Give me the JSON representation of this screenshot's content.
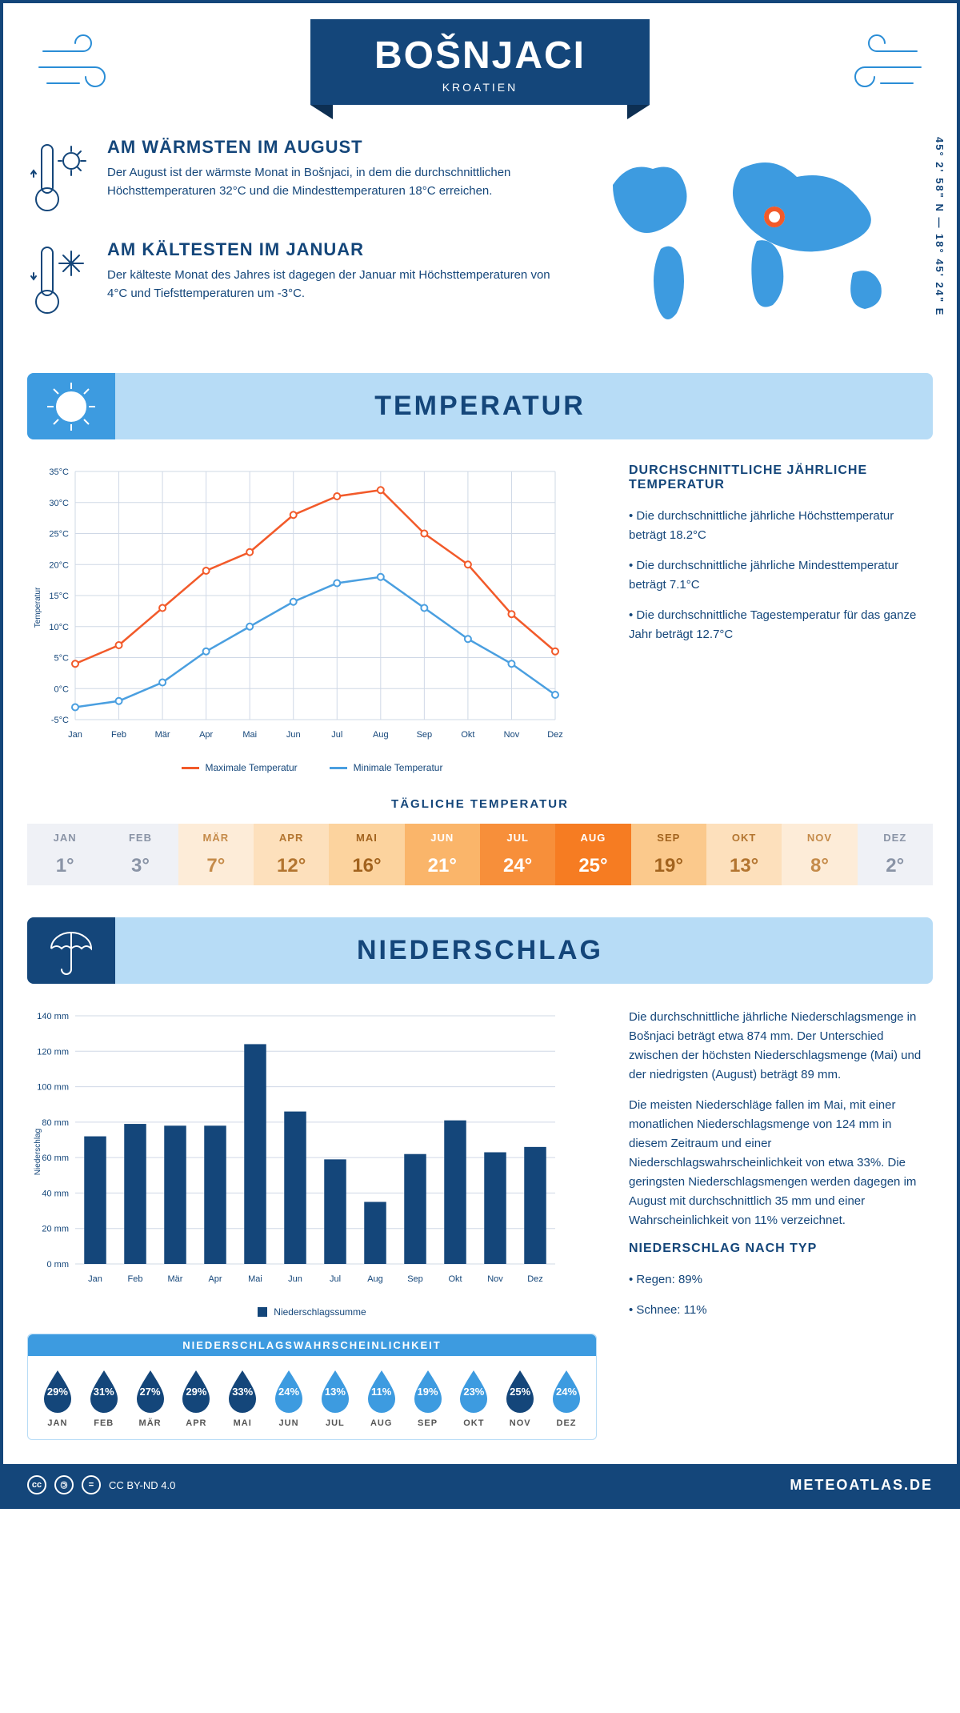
{
  "place": "BOŠNJACI",
  "country": "KROATIEN",
  "coords": "45° 2' 58\" N — 18° 45' 24\" E",
  "warmest": {
    "title": "AM WÄRMSTEN IM AUGUST",
    "text": "Der August ist der wärmste Monat in Bošnjaci, in dem die durchschnittlichen Höchsttemperaturen 32°C und die Mindesttemperaturen 18°C erreichen."
  },
  "coldest": {
    "title": "AM KÄLTESTEN IM JANUAR",
    "text": "Der kälteste Monat des Jahres ist dagegen der Januar mit Höchsttemperaturen von 4°C und Tiefsttemperaturen um -3°C."
  },
  "sections": {
    "temperature": "TEMPERATUR",
    "precipitation": "NIEDERSCHLAG"
  },
  "temp_info": {
    "heading": "DURCHSCHNITTLICHE JÄHRLICHE TEMPERATUR",
    "lines": [
      "• Die durchschnittliche jährliche Höchsttemperatur beträgt 18.2°C",
      "• Die durchschnittliche jährliche Mindesttemperatur beträgt 7.1°C",
      "• Die durchschnittliche Tagestemperatur für das ganze Jahr beträgt 12.7°C"
    ]
  },
  "months": [
    "Jan",
    "Feb",
    "Mär",
    "Apr",
    "Mai",
    "Jun",
    "Jul",
    "Aug",
    "Sep",
    "Okt",
    "Nov",
    "Dez"
  ],
  "months_upper": [
    "JAN",
    "FEB",
    "MÄR",
    "APR",
    "MAI",
    "JUN",
    "JUL",
    "AUG",
    "SEP",
    "OKT",
    "NOV",
    "DEZ"
  ],
  "temp_chart": {
    "type": "line",
    "ylabel": "Temperatur",
    "ylim": [
      -5,
      35
    ],
    "ytick_step": 5,
    "max": {
      "label": "Maximale Temperatur",
      "color": "#f25a2a",
      "values": [
        4,
        7,
        13,
        19,
        22,
        28,
        31,
        32,
        25,
        20,
        12,
        6
      ]
    },
    "min": {
      "label": "Minimale Temperatur",
      "color": "#4a9fe0",
      "values": [
        -3,
        -2,
        1,
        6,
        10,
        14,
        17,
        18,
        13,
        8,
        4,
        -1
      ]
    },
    "grid_color": "#cfd8e6",
    "background": "#ffffff",
    "label_fontsize": 11
  },
  "daily_title": "TÄGLICHE TEMPERATUR",
  "daily_temps": [
    1,
    3,
    7,
    12,
    16,
    21,
    24,
    25,
    19,
    13,
    8,
    2
  ],
  "daily_colors": [
    "#eff1f6",
    "#eff1f6",
    "#fdecd8",
    "#fde0bc",
    "#fcd39e",
    "#fab56a",
    "#f78f3a",
    "#f67c22",
    "#fbc98c",
    "#fde0bc",
    "#fdecd8",
    "#eff1f6"
  ],
  "daily_text_colors": [
    "#8a94a6",
    "#8a94a6",
    "#c58b4a",
    "#b37530",
    "#a2631e",
    "#ffffff",
    "#ffffff",
    "#ffffff",
    "#a2631e",
    "#b37530",
    "#c58b4a",
    "#8a94a6"
  ],
  "precip_chart": {
    "type": "bar",
    "ylabel": "Niederschlag",
    "ylim": [
      0,
      140
    ],
    "ytick_step": 20,
    "values": [
      72,
      79,
      78,
      78,
      124,
      86,
      59,
      35,
      62,
      81,
      63,
      66
    ],
    "bar_color": "#14467a",
    "grid_color": "#cfd8e6",
    "legend": "Niederschlagssumme"
  },
  "precip_text": {
    "p1": "Die durchschnittliche jährliche Niederschlagsmenge in Bošnjaci beträgt etwa 874 mm. Der Unterschied zwischen der höchsten Niederschlagsmenge (Mai) und der niedrigsten (August) beträgt 89 mm.",
    "p2": "Die meisten Niederschläge fallen im Mai, mit einer monatlichen Niederschlagsmenge von 124 mm in diesem Zeitraum und einer Niederschlagswahrscheinlichkeit von etwa 33%. Die geringsten Niederschlagsmengen werden dagegen im August mit durchschnittlich 35 mm und einer Wahrscheinlichkeit von 11% verzeichnet.",
    "heading": "NIEDERSCHLAG NACH TYP",
    "rain": "• Regen: 89%",
    "snow": "• Schnee: 11%"
  },
  "prob_title": "NIEDERSCHLAGSWAHRSCHEINLICHKEIT",
  "prob": [
    29,
    31,
    27,
    29,
    33,
    24,
    13,
    11,
    19,
    23,
    25,
    24
  ],
  "prob_colors": [
    "#14467a",
    "#14467a",
    "#14467a",
    "#14467a",
    "#14467a",
    "#3d9be0",
    "#3d9be0",
    "#3d9be0",
    "#3d9be0",
    "#3d9be0",
    "#14467a",
    "#3d9be0"
  ],
  "footer": {
    "license": "CC BY-ND 4.0",
    "site": "METEOATLAS.DE"
  }
}
